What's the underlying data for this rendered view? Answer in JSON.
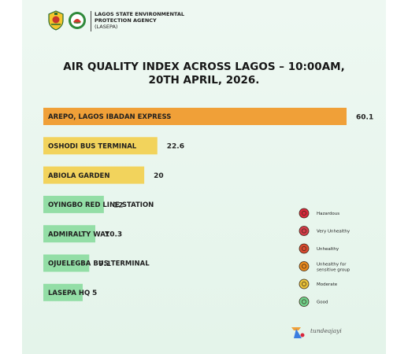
{
  "header": {
    "agency_line1": "LAGOS STATE ENVIRONMENTAL",
    "agency_line2": "PROTECTION AGENCY",
    "agency_line3": "(LASEPA)"
  },
  "chart_data": {
    "type": "bar",
    "orientation": "horizontal",
    "title": "AIR QUALITY INDEX ACROSS LAGOS – 10:00AM, 20TH APRIL, 2026.",
    "title_line1": "AIR QUALITY INDEX ACROSS LAGOS – 10:00AM,",
    "title_line2": "20TH  APRIL, 2026.",
    "categories": [
      "AREPO, LAGOS IBADAN EXPRESS",
      "OSHODI BUS TERMINAL",
      "ABIOLA GARDEN",
      "OYINGBO RED LINE STATION",
      "ADMIRALTY WAY",
      "OJUELEGBA BUS TERMINAL",
      "LASEPA HQ"
    ],
    "values": [
      60.1,
      22.6,
      20,
      12,
      10.3,
      9.1,
      5
    ],
    "value_labels": [
      "60.1",
      "22.6",
      "20",
      "12",
      "10.3",
      "9.1",
      "5"
    ],
    "bar_categories": [
      "Unhealthy for sensitive group",
      "Moderate",
      "Moderate",
      "Good",
      "Good",
      "Good",
      "Good"
    ],
    "legend": [
      {
        "label": "Hazardous",
        "color": "#d8263b"
      },
      {
        "label": "Very Unhealthy",
        "color": "#d43b4a"
      },
      {
        "label": "Unhealthy",
        "color": "#d9492f"
      },
      {
        "label": "Unhealthy for sensitive group",
        "label_line1": "Unhealthy for",
        "label_line2": "sensitive group",
        "color": "#e8891e"
      },
      {
        "label": "Moderate",
        "color": "#e8c23a"
      },
      {
        "label": "Good",
        "color": "#6fd18a"
      }
    ],
    "colors": {
      "Unhealthy for sensitive group": "#f0a038",
      "Moderate": "#f2d35c",
      "Good": "#93dea6"
    },
    "grid": false,
    "legend_position": "right"
  },
  "brand": {
    "text": "tundeajayi"
  }
}
